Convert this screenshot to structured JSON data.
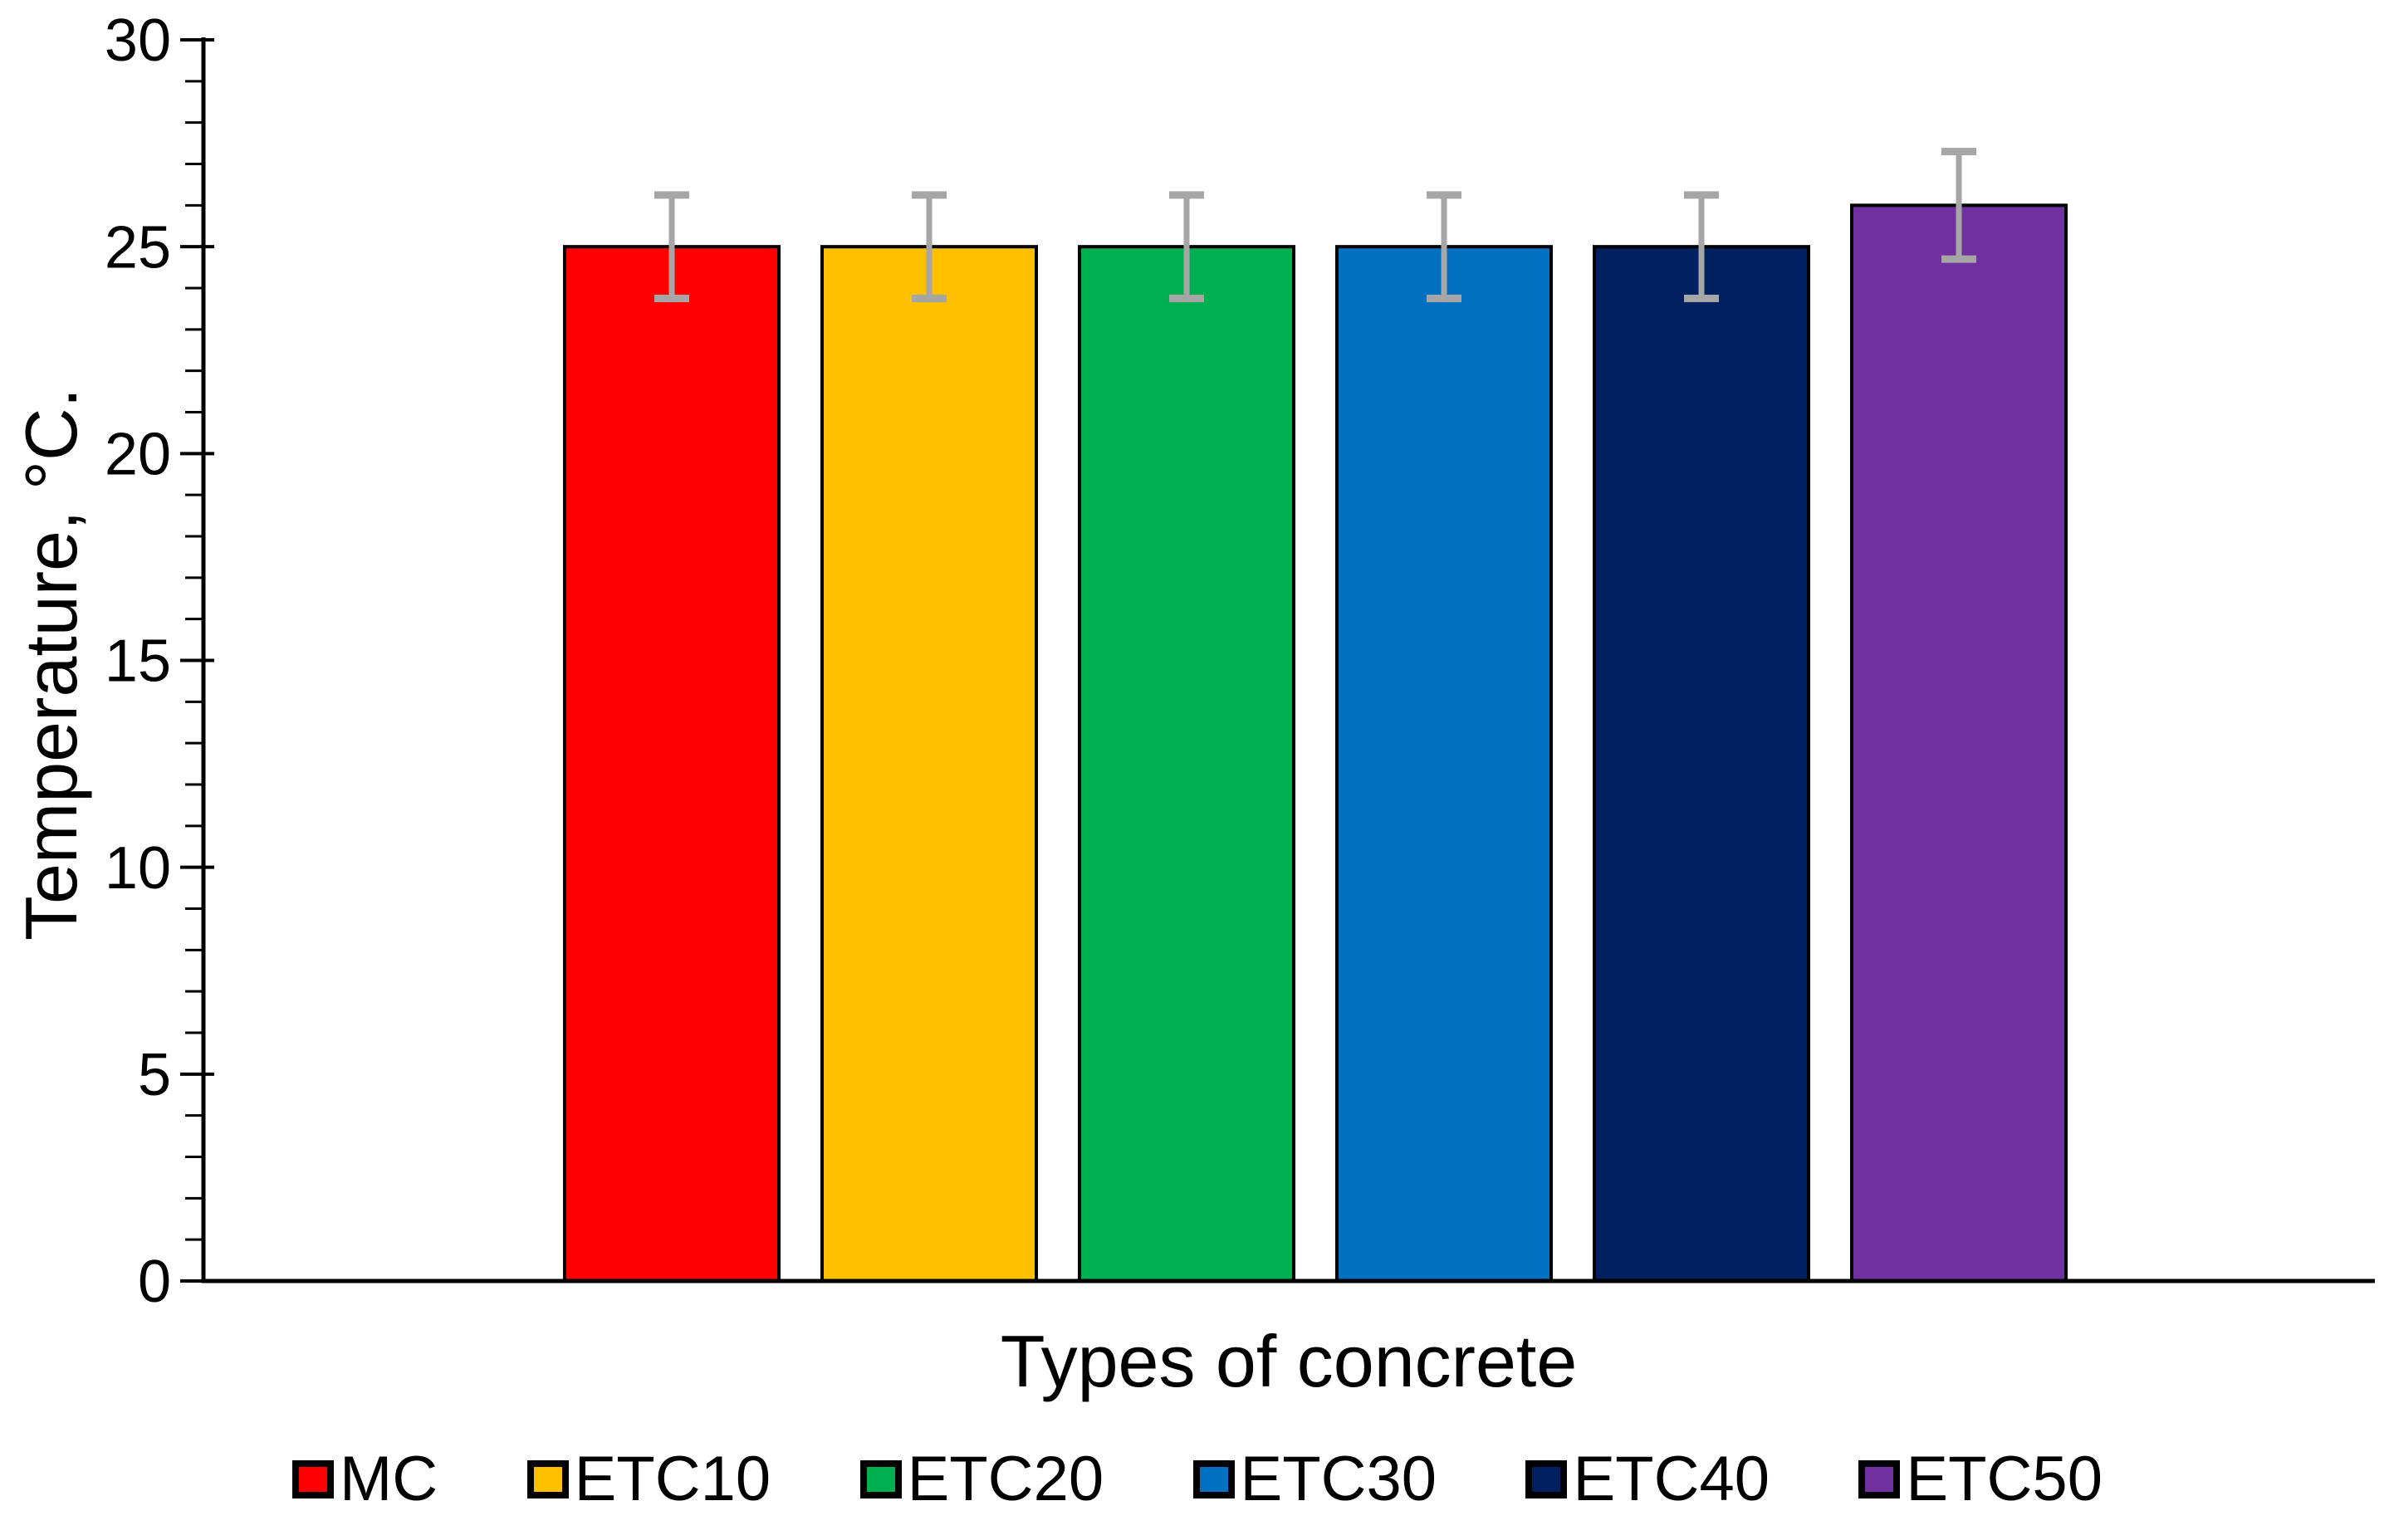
{
  "chart_data": {
    "type": "bar",
    "title": "",
    "xlabel": "Types of concrete",
    "ylabel": "Temperature, °C.",
    "categories": [
      "MC",
      "ETC10",
      "ETC20",
      "ETC30",
      "ETC40",
      "ETC50"
    ],
    "values": [
      25,
      25,
      25,
      25,
      25,
      26
    ],
    "error_bars": [
      1.25,
      1.25,
      1.25,
      1.25,
      1.25,
      1.3
    ],
    "bar_colors": [
      "#FF0000",
      "#FFC000",
      "#00B050",
      "#0070C0",
      "#002060",
      "#7030A0"
    ],
    "bar_border_color": "#000000",
    "error_bar_color": "#A6A6A6",
    "axis_color": "#000000",
    "ylim": [
      0,
      30
    ],
    "ytick_step": 5,
    "yminor_step": 1,
    "ytick_labels": [
      "0",
      "5",
      "10",
      "15",
      "20",
      "25",
      "30"
    ],
    "grid": false,
    "legend_position": "bottom"
  }
}
